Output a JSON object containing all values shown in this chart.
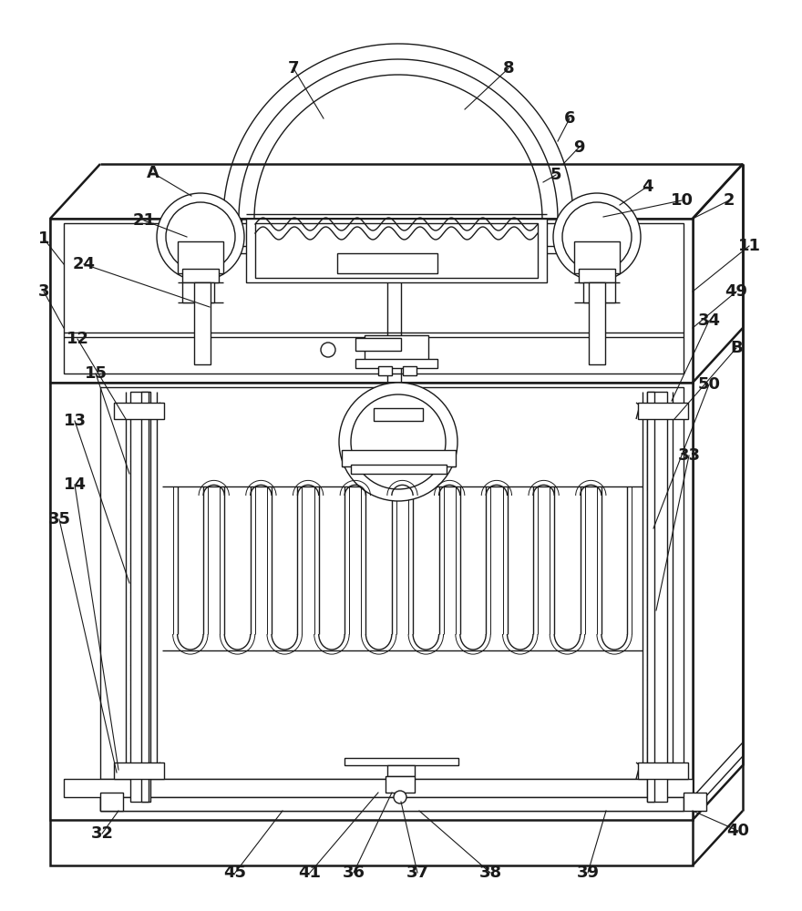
{
  "bg_color": "#ffffff",
  "lc": "#1a1a1a",
  "lw": 1.0,
  "tlw": 1.8,
  "hlw": 0.6,
  "fs": 13,
  "fs_bold": true
}
